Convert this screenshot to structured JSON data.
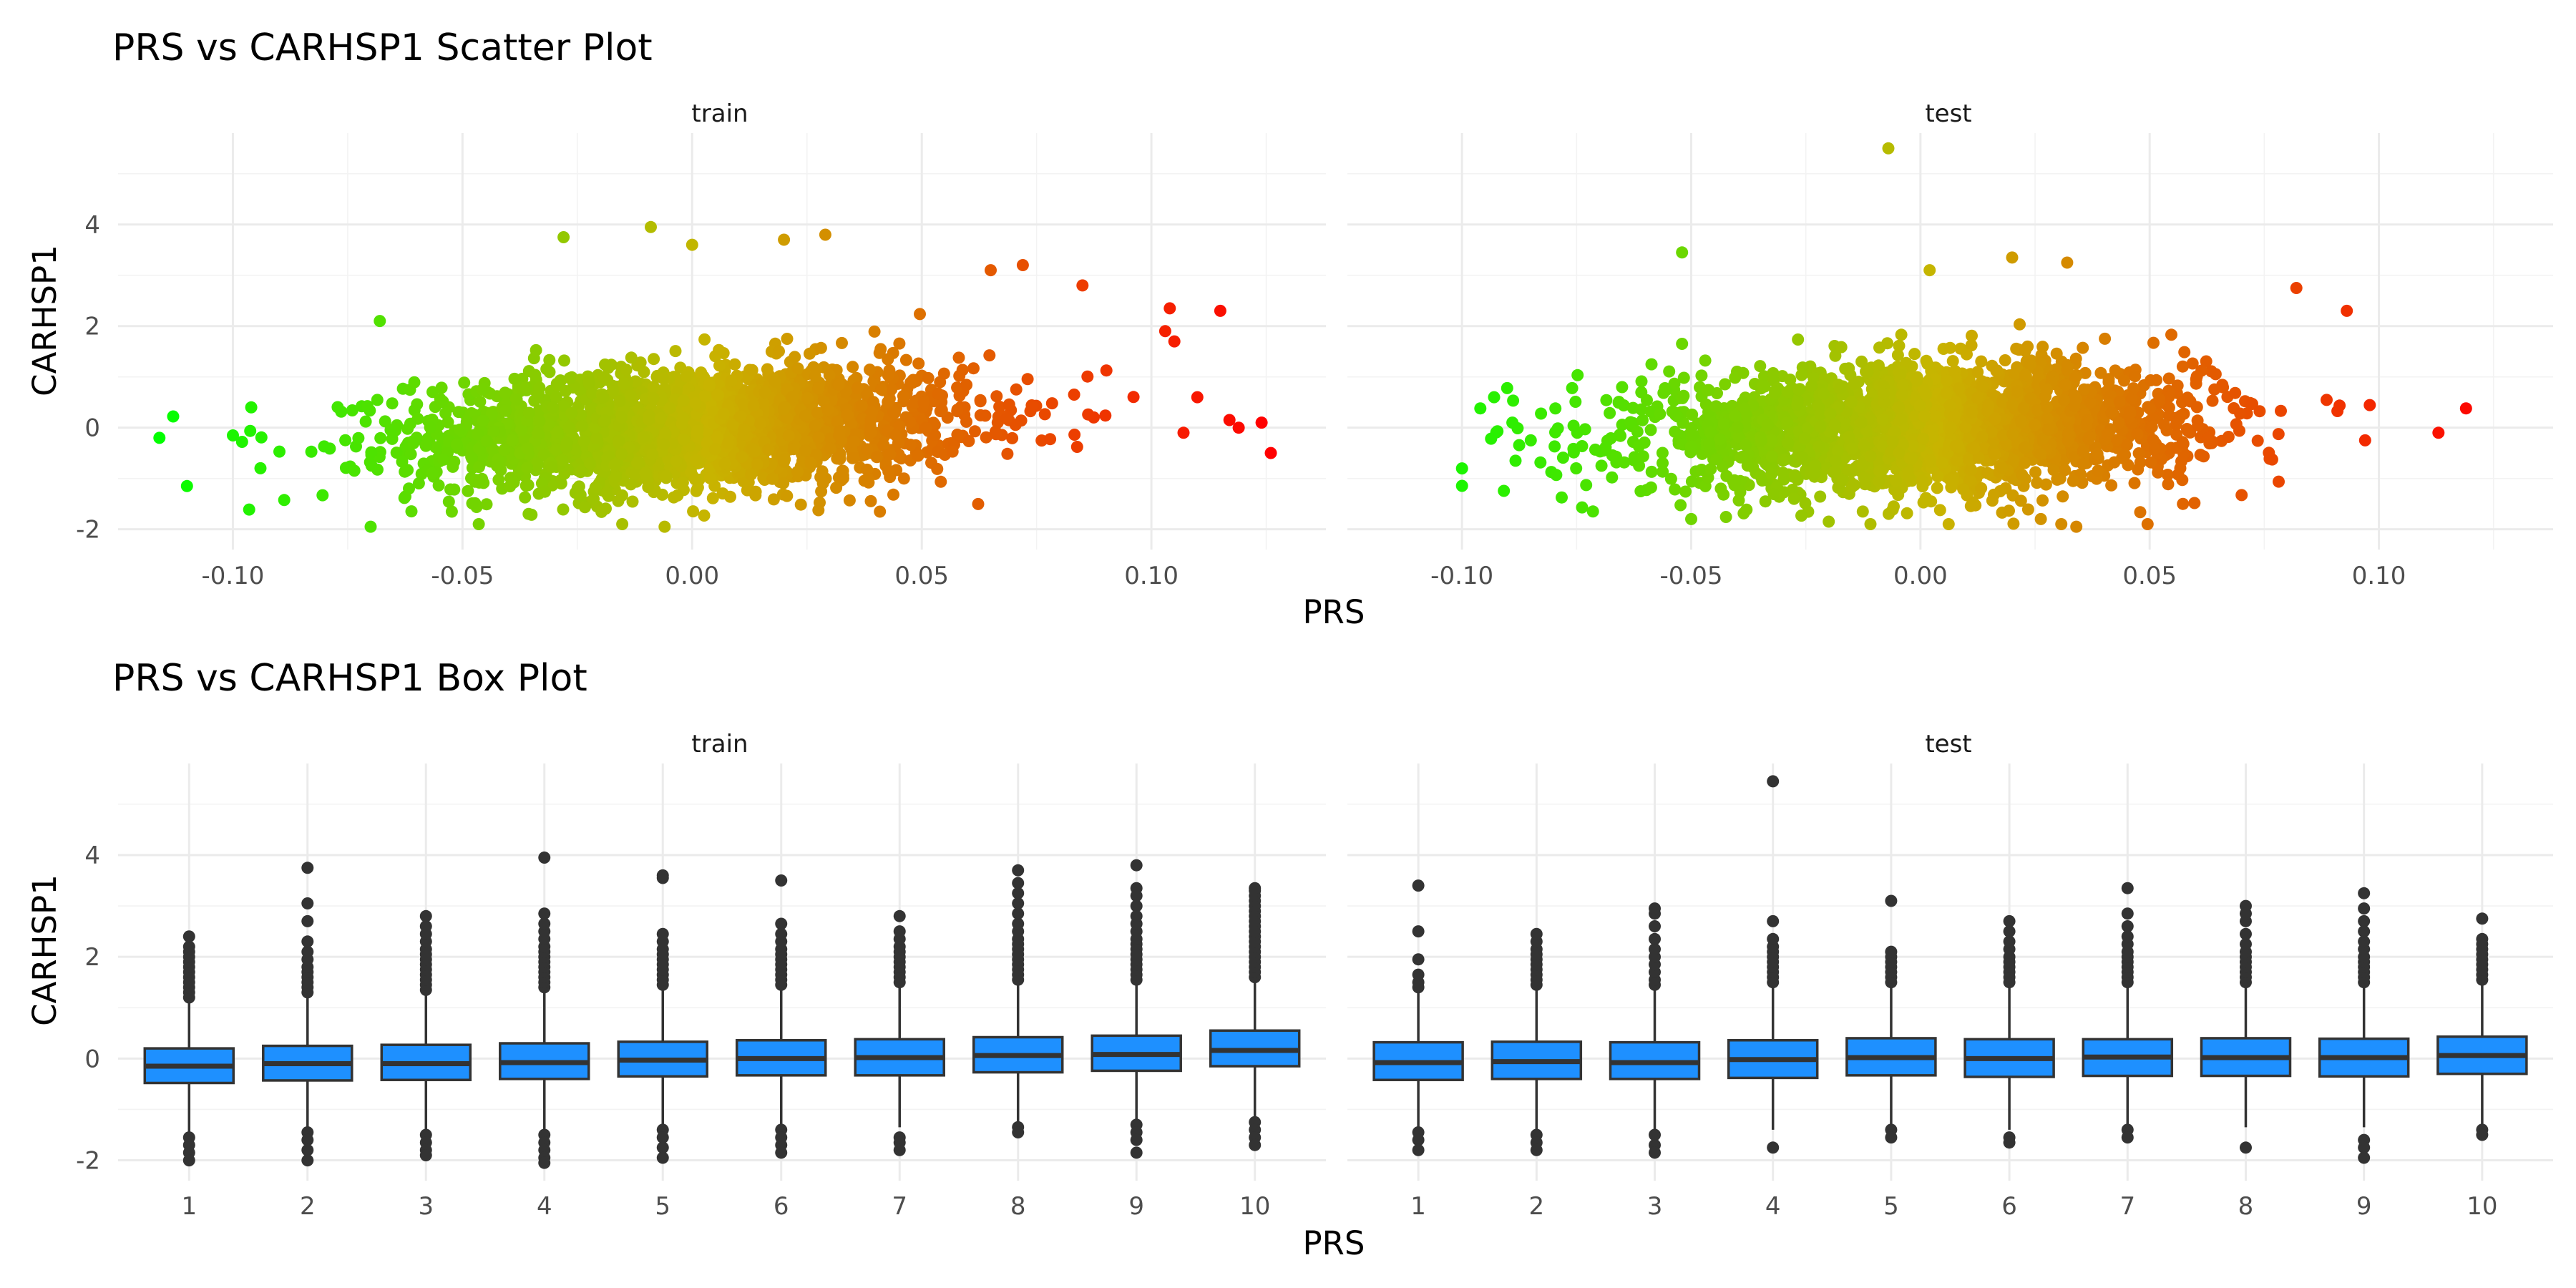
{
  "chart_data": [
    {
      "type": "scatter",
      "title": "PRS vs CARHSP1 Scatter Plot",
      "xlabel": "PRS",
      "ylabel": "CARHSP1",
      "facets": [
        "train",
        "test"
      ],
      "xlim": [
        -0.125,
        0.138
      ],
      "ylim": [
        -2.4,
        5.8
      ],
      "x_ticks": [
        -0.1,
        -0.05,
        0.0,
        0.05,
        0.1
      ],
      "x_tick_labels": [
        "-0.10",
        "-0.05",
        "0.00",
        "0.05",
        "0.10"
      ],
      "y_ticks": [
        -2,
        0,
        2,
        4
      ],
      "y_tick_labels": [
        "-2",
        "0",
        "2",
        "4"
      ],
      "grid": true,
      "legend": "none",
      "color_scale": {
        "low": "#00ff00",
        "mid": "#c8b400",
        "high": "#ff0000",
        "low_value": -0.117,
        "high_value": 0.125
      },
      "series": [
        {
          "name": "train",
          "bulk": {
            "x_mean": 0.0,
            "x_sd": 0.03,
            "y_mean": 0.0,
            "y_sd": 0.6,
            "slope": 3.6
          },
          "points": [
            {
              "x": -0.116,
              "y": -0.2
            },
            {
              "x": -0.113,
              "y": 0.22
            },
            {
              "x": -0.11,
              "y": -1.15
            },
            {
              "x": -0.098,
              "y": -0.28
            },
            {
              "x": -0.096,
              "y": 0.4
            },
            {
              "x": -0.094,
              "y": -0.8
            },
            {
              "x": -0.068,
              "y": 2.1
            },
            {
              "x": -0.07,
              "y": -1.95
            },
            {
              "x": -0.028,
              "y": 3.75
            },
            {
              "x": -0.009,
              "y": 3.95
            },
            {
              "x": 0.0,
              "y": 3.6
            },
            {
              "x": 0.02,
              "y": 3.7
            },
            {
              "x": 0.029,
              "y": 3.8
            },
            {
              "x": -0.006,
              "y": -1.95
            },
            {
              "x": 0.115,
              "y": 2.3
            },
            {
              "x": 0.104,
              "y": 2.35
            },
            {
              "x": 0.103,
              "y": 1.9
            },
            {
              "x": 0.124,
              "y": 0.1
            },
            {
              "x": 0.126,
              "y": -0.5
            },
            {
              "x": 0.117,
              "y": 0.15
            },
            {
              "x": 0.119,
              "y": 0.0
            },
            {
              "x": 0.107,
              "y": -0.1
            },
            {
              "x": 0.11,
              "y": 0.6
            },
            {
              "x": 0.065,
              "y": 3.1
            },
            {
              "x": 0.072,
              "y": 3.2
            },
            {
              "x": 0.085,
              "y": 2.8
            }
          ]
        },
        {
          "name": "test",
          "bulk": {
            "x_mean": 0.0,
            "x_sd": 0.03,
            "y_mean": 0.0,
            "y_sd": 0.6,
            "slope": 2.4
          },
          "points": [
            {
              "x": -0.096,
              "y": 0.38
            },
            {
              "x": -0.093,
              "y": 0.6
            },
            {
              "x": -0.089,
              "y": 0.1
            },
            {
              "x": -0.085,
              "y": -0.25
            },
            {
              "x": -0.052,
              "y": 3.45
            },
            {
              "x": -0.052,
              "y": 1.65
            },
            {
              "x": -0.007,
              "y": 5.5
            },
            {
              "x": 0.002,
              "y": 3.1
            },
            {
              "x": 0.02,
              "y": 3.35
            },
            {
              "x": 0.032,
              "y": 3.25
            },
            {
              "x": 0.093,
              "y": 2.3
            },
            {
              "x": 0.082,
              "y": 2.75
            },
            {
              "x": 0.113,
              "y": -0.1
            },
            {
              "x": 0.119,
              "y": 0.38
            },
            {
              "x": 0.097,
              "y": -0.25
            },
            {
              "x": 0.034,
              "y": -1.95
            },
            {
              "x": -0.05,
              "y": -1.8
            },
            {
              "x": -0.02,
              "y": -1.85
            }
          ]
        }
      ]
    },
    {
      "type": "box",
      "title": "PRS vs CARHSP1 Box Plot",
      "xlabel": "PRS",
      "ylabel": "CARHSP1",
      "facets": [
        "train",
        "test"
      ],
      "categories": [
        "1",
        "2",
        "3",
        "4",
        "5",
        "6",
        "7",
        "8",
        "9",
        "10"
      ],
      "ylim": [
        -2.4,
        5.8
      ],
      "y_ticks": [
        -2,
        0,
        2,
        4
      ],
      "y_tick_labels": [
        "-2",
        "0",
        "2",
        "4"
      ],
      "box_color": "#1e90ff",
      "grid": true,
      "legend": "none",
      "series": [
        {
          "name": "train",
          "boxes": [
            {
              "category": "1",
              "q1": -0.48,
              "median": -0.15,
              "q3": 0.2,
              "whisker_low": -1.5,
              "whisker_high": 1.2,
              "outliers_high": [
                1.2,
                1.3,
                1.4,
                1.5,
                1.6,
                1.7,
                1.8,
                1.9,
                2.0,
                2.1,
                2.2,
                2.4
              ],
              "outliers_low": [
                -1.55,
                -1.7,
                -1.85,
                -2.0
              ]
            },
            {
              "category": "2",
              "q1": -0.43,
              "median": -0.1,
              "q3": 0.25,
              "whisker_low": -1.4,
              "whisker_high": 1.25,
              "outliers_high": [
                1.3,
                1.4,
                1.5,
                1.6,
                1.7,
                1.8,
                1.95,
                2.1,
                2.3,
                2.7,
                3.05,
                3.75
              ],
              "outliers_low": [
                -1.45,
                -1.6,
                -1.8,
                -2.0
              ]
            },
            {
              "category": "3",
              "q1": -0.42,
              "median": -0.1,
              "q3": 0.27,
              "whisker_low": -1.4,
              "whisker_high": 1.3,
              "outliers_high": [
                1.35,
                1.45,
                1.55,
                1.65,
                1.75,
                1.85,
                1.95,
                2.05,
                2.15,
                2.3,
                2.45,
                2.6,
                2.8
              ],
              "outliers_low": [
                -1.5,
                -1.65,
                -1.8,
                -1.9
              ]
            },
            {
              "category": "4",
              "q1": -0.4,
              "median": -0.08,
              "q3": 0.3,
              "whisker_low": -1.4,
              "whisker_high": 1.35,
              "outliers_high": [
                1.4,
                1.5,
                1.6,
                1.7,
                1.8,
                1.9,
                2.0,
                2.1,
                2.2,
                2.35,
                2.5,
                2.65,
                2.85,
                3.95
              ],
              "outliers_low": [
                -1.5,
                -1.65,
                -1.8,
                -1.95,
                -2.05
              ]
            },
            {
              "category": "5",
              "q1": -0.35,
              "median": -0.03,
              "q3": 0.33,
              "whisker_low": -1.35,
              "whisker_high": 1.4,
              "outliers_high": [
                1.45,
                1.55,
                1.65,
                1.75,
                1.85,
                1.95,
                2.05,
                2.15,
                2.3,
                2.45,
                3.55,
                3.6
              ],
              "outliers_low": [
                -1.4,
                -1.55,
                -1.75,
                -1.95
              ]
            },
            {
              "category": "6",
              "q1": -0.33,
              "median": 0.0,
              "q3": 0.36,
              "whisker_low": -1.35,
              "whisker_high": 1.4,
              "outliers_high": [
                1.45,
                1.55,
                1.65,
                1.75,
                1.85,
                1.95,
                2.05,
                2.15,
                2.3,
                2.45,
                2.65,
                3.5
              ],
              "outliers_low": [
                -1.4,
                -1.55,
                -1.7,
                -1.85
              ]
            },
            {
              "category": "7",
              "q1": -0.33,
              "median": 0.02,
              "q3": 0.38,
              "whisker_low": -1.35,
              "whisker_high": 1.45,
              "outliers_high": [
                1.5,
                1.6,
                1.7,
                1.8,
                1.9,
                2.0,
                2.1,
                2.2,
                2.35,
                2.5,
                2.8
              ],
              "outliers_low": [
                -1.55,
                -1.65,
                -1.8
              ]
            },
            {
              "category": "8",
              "q1": -0.27,
              "median": 0.06,
              "q3": 0.42,
              "whisker_low": -1.3,
              "whisker_high": 1.5,
              "outliers_high": [
                1.55,
                1.65,
                1.75,
                1.85,
                1.95,
                2.05,
                2.15,
                2.25,
                2.35,
                2.5,
                2.65,
                2.85,
                3.05,
                3.25,
                3.45,
                3.7
              ],
              "outliers_low": [
                -1.35,
                -1.45
              ]
            },
            {
              "category": "9",
              "q1": -0.24,
              "median": 0.08,
              "q3": 0.45,
              "whisker_low": -1.25,
              "whisker_high": 1.5,
              "outliers_high": [
                1.55,
                1.65,
                1.75,
                1.85,
                1.95,
                2.05,
                2.15,
                2.25,
                2.35,
                2.5,
                2.65,
                2.8,
                3.0,
                3.2,
                3.35,
                3.8
              ],
              "outliers_low": [
                -1.3,
                -1.45,
                -1.6,
                -1.85
              ]
            },
            {
              "category": "10",
              "q1": -0.15,
              "median": 0.16,
              "q3": 0.55,
              "whisker_low": -1.2,
              "whisker_high": 1.55,
              "outliers_high": [
                1.6,
                1.7,
                1.8,
                1.9,
                2.0,
                2.1,
                2.2,
                2.3,
                2.4,
                2.5,
                2.6,
                2.7,
                2.8,
                2.9,
                3.0,
                3.1,
                3.2,
                3.3,
                3.35
              ],
              "outliers_low": [
                -1.25,
                -1.4,
                -1.55,
                -1.7
              ]
            }
          ]
        },
        {
          "name": "test",
          "boxes": [
            {
              "category": "1",
              "q1": -0.42,
              "median": -0.08,
              "q3": 0.32,
              "whisker_low": -1.4,
              "whisker_high": 1.3,
              "outliers_high": [
                1.4,
                1.5,
                1.65,
                1.95,
                2.5,
                3.4
              ],
              "outliers_low": [
                -1.45,
                -1.6,
                -1.8
              ]
            },
            {
              "category": "2",
              "q1": -0.4,
              "median": -0.06,
              "q3": 0.33,
              "whisker_low": -1.4,
              "whisker_high": 1.35,
              "outliers_high": [
                1.45,
                1.55,
                1.65,
                1.75,
                1.85,
                1.95,
                2.05,
                2.15,
                2.3,
                2.45
              ],
              "outliers_low": [
                -1.5,
                -1.65,
                -1.8
              ]
            },
            {
              "category": "3",
              "q1": -0.4,
              "median": -0.08,
              "q3": 0.32,
              "whisker_low": -1.4,
              "whisker_high": 1.35,
              "outliers_high": [
                1.45,
                1.55,
                1.7,
                1.85,
                2.0,
                2.15,
                2.35,
                2.6,
                2.85,
                2.95
              ],
              "outliers_low": [
                -1.5,
                -1.7,
                -1.85
              ]
            },
            {
              "category": "4",
              "q1": -0.38,
              "median": -0.02,
              "q3": 0.36,
              "whisker_low": -1.4,
              "whisker_high": 1.4,
              "outliers_high": [
                1.5,
                1.6,
                1.7,
                1.8,
                1.9,
                2.0,
                2.1,
                2.2,
                2.35,
                2.7,
                5.45
              ],
              "outliers_low": [
                -1.75
              ]
            },
            {
              "category": "5",
              "q1": -0.33,
              "median": 0.02,
              "q3": 0.4,
              "whisker_low": -1.35,
              "whisker_high": 1.45,
              "outliers_high": [
                1.5,
                1.6,
                1.7,
                1.8,
                1.9,
                2.0,
                2.1,
                3.1
              ],
              "outliers_low": [
                -1.4,
                -1.55
              ]
            },
            {
              "category": "6",
              "q1": -0.36,
              "median": 0.0,
              "q3": 0.38,
              "whisker_low": -1.4,
              "whisker_high": 1.45,
              "outliers_high": [
                1.5,
                1.6,
                1.7,
                1.8,
                1.9,
                2.0,
                2.15,
                2.3,
                2.5,
                2.7
              ],
              "outliers_low": [
                -1.55,
                -1.65
              ]
            },
            {
              "category": "7",
              "q1": -0.34,
              "median": 0.03,
              "q3": 0.38,
              "whisker_low": -1.35,
              "whisker_high": 1.45,
              "outliers_high": [
                1.5,
                1.6,
                1.7,
                1.8,
                1.9,
                2.0,
                2.1,
                2.25,
                2.4,
                2.6,
                2.85,
                3.35
              ],
              "outliers_low": [
                -1.4,
                -1.55
              ]
            },
            {
              "category": "8",
              "q1": -0.34,
              "median": 0.02,
              "q3": 0.4,
              "whisker_low": -1.35,
              "whisker_high": 1.45,
              "outliers_high": [
                1.5,
                1.6,
                1.7,
                1.8,
                1.9,
                2.0,
                2.1,
                2.25,
                2.45,
                2.7,
                2.85,
                3.0
              ],
              "outliers_low": [
                -1.75
              ]
            },
            {
              "category": "9",
              "q1": -0.35,
              "median": 0.02,
              "q3": 0.39,
              "whisker_low": -1.35,
              "whisker_high": 1.45,
              "outliers_high": [
                1.5,
                1.6,
                1.7,
                1.8,
                1.9,
                2.0,
                2.15,
                2.3,
                2.5,
                2.7,
                2.95,
                3.25
              ],
              "outliers_low": [
                -1.6,
                -1.75,
                -1.95
              ]
            },
            {
              "category": "10",
              "q1": -0.3,
              "median": 0.06,
              "q3": 0.43,
              "whisker_low": -1.35,
              "whisker_high": 1.5,
              "outliers_high": [
                1.55,
                1.65,
                1.75,
                1.85,
                1.95,
                2.05,
                2.15,
                2.25,
                2.35,
                2.75
              ],
              "outliers_low": [
                -1.4,
                -1.5
              ]
            }
          ]
        }
      ]
    }
  ]
}
